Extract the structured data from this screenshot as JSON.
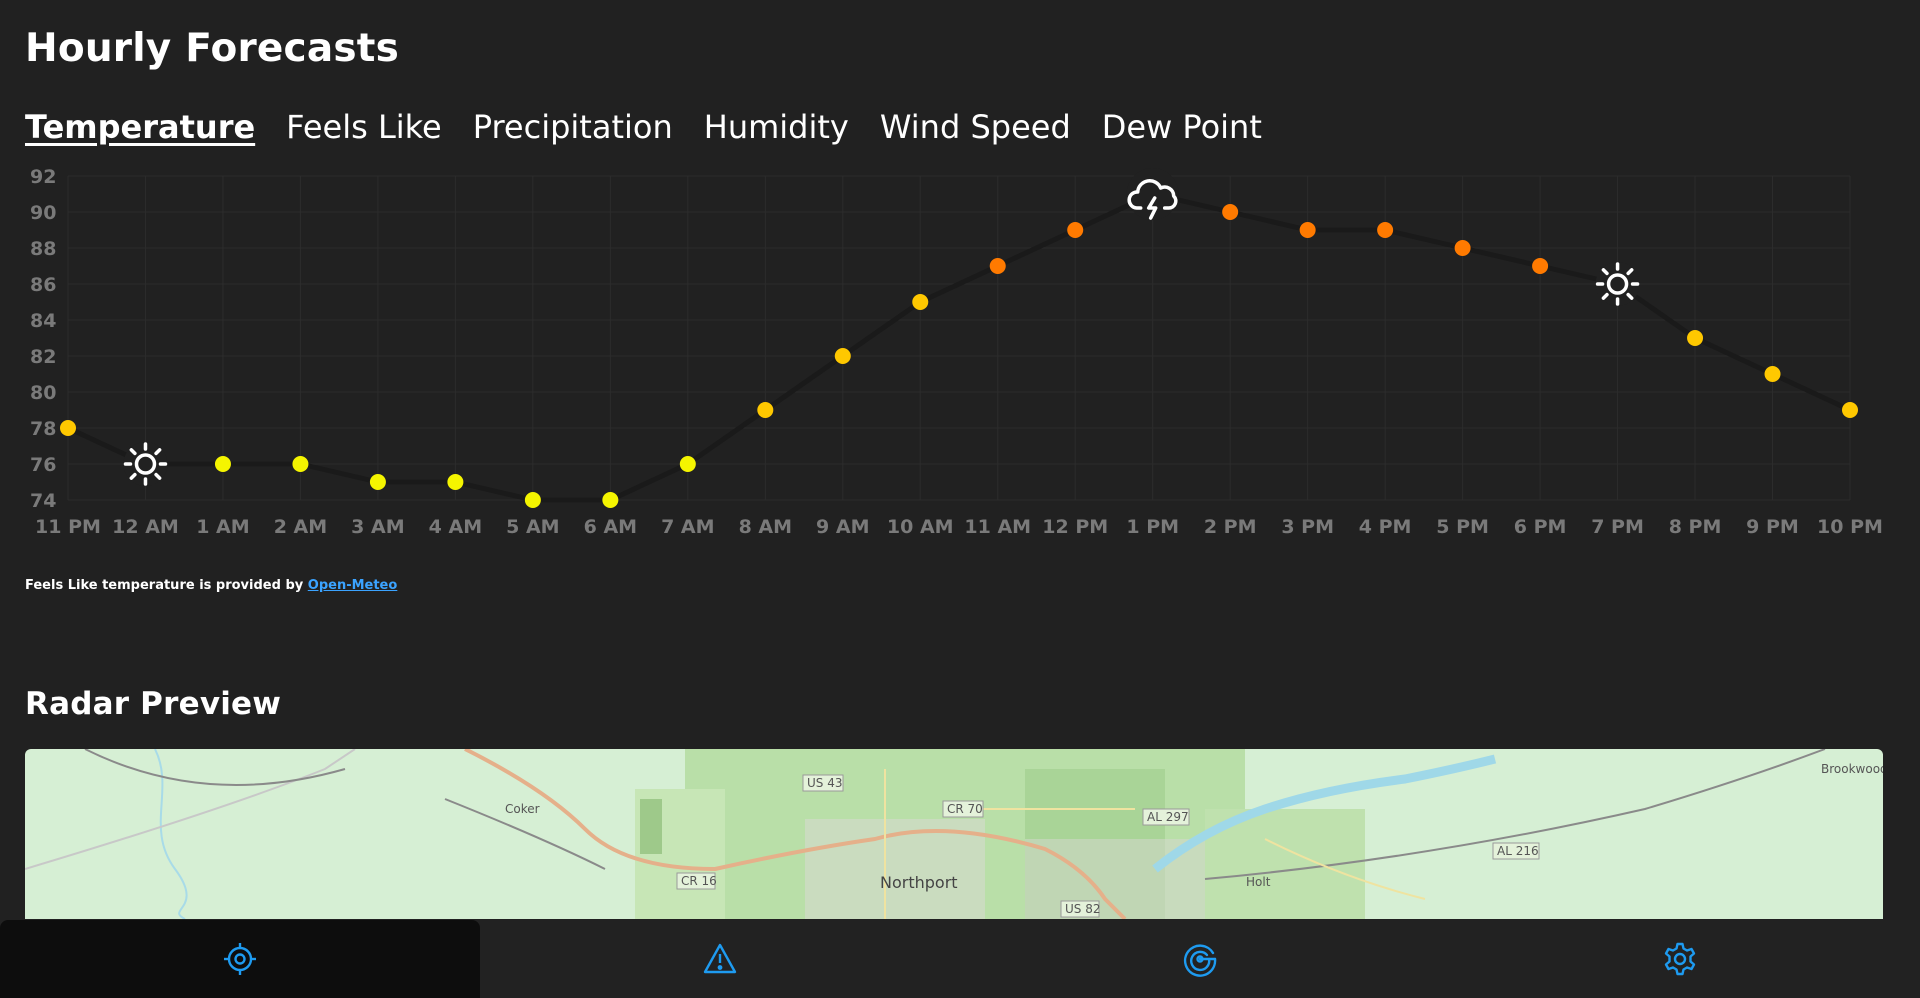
{
  "hourly": {
    "title": "Hourly Forecasts",
    "tabs": [
      "Temperature",
      "Feels Like",
      "Precipitation",
      "Humidity",
      "Wind Speed",
      "Dew Point"
    ],
    "active_tab": "Temperature"
  },
  "chart_data": {
    "type": "line",
    "x": [
      "11 PM",
      "12 AM",
      "1 AM",
      "2 AM",
      "3 AM",
      "4 AM",
      "5 AM",
      "6 AM",
      "7 AM",
      "8 AM",
      "9 AM",
      "10 AM",
      "11 AM",
      "12 PM",
      "1 PM",
      "2 PM",
      "3 PM",
      "4 PM",
      "5 PM",
      "6 PM",
      "7 PM",
      "8 PM",
      "9 PM",
      "10 PM"
    ],
    "values": [
      78,
      76,
      76,
      76,
      75,
      75,
      74,
      74,
      76,
      79,
      82,
      85,
      87,
      89,
      91,
      90,
      89,
      89,
      88,
      87,
      86,
      83,
      81,
      79
    ],
    "markers": [
      "dot",
      "sun-icon",
      "dot",
      "dot",
      "dot",
      "dot",
      "dot",
      "dot",
      "dot",
      "dot",
      "dot",
      "dot",
      "dot",
      "dot",
      "thunderstorm-icon",
      "dot",
      "dot",
      "dot",
      "dot",
      "dot",
      "sun-icon",
      "dot",
      "dot",
      "dot"
    ],
    "ylim": [
      74,
      92
    ],
    "yticks": [
      92,
      90,
      88,
      86,
      84,
      82,
      80,
      78,
      76,
      74
    ],
    "grid": true,
    "colors": {
      "cool": "#f5f500",
      "warm": "#ffc800",
      "hot": "#ff7a00",
      "line": "#1a1a1a",
      "grid": "#2c2c2c"
    }
  },
  "credit": {
    "text": "Feels Like temperature is provided by",
    "link": "Open-Meteo"
  },
  "radar": {
    "title": "Radar Preview",
    "map_labels": {
      "us43": "US 43",
      "cr70": "CR 70",
      "al297": "AL 297",
      "al216": "AL 216",
      "cr16": "CR 16",
      "us82": "US 82",
      "coker": "Coker",
      "northport": "Northport",
      "holt": "Holt",
      "brookwood": "Brookwood"
    }
  },
  "nav": [
    {
      "icon": "location-target-icon",
      "active": true
    },
    {
      "icon": "warning-icon",
      "active": false
    },
    {
      "icon": "radar-icon",
      "active": false
    },
    {
      "icon": "gear-icon",
      "active": false
    }
  ],
  "accent_color": "#1e9bf0"
}
